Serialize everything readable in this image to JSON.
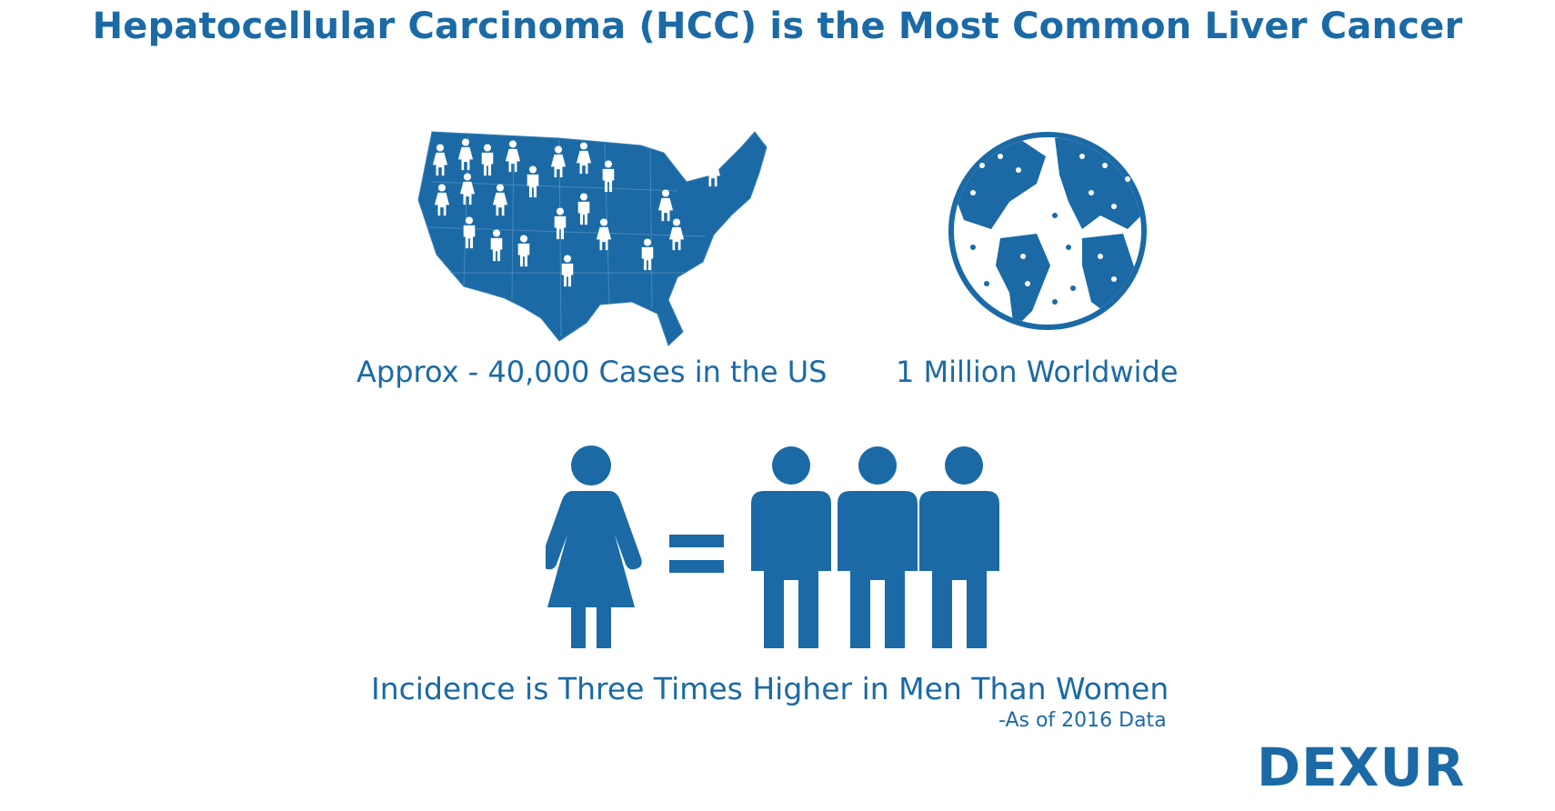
{
  "title": "Hepatocellular Carcinoma (HCC) is the Most Common Liver Cancer",
  "us_caption": "Approx - 40,000 Cases in the US",
  "world_caption": "1 Million Worldwide",
  "incidence_caption": "Incidence is Three Times Higher in Men Than Women",
  "source_note": "-As of 2016 Data",
  "brand": "DEXUR",
  "colors": {
    "primary": "#1b6aa5",
    "background": "#ffffff"
  },
  "icons": [
    "us-map-icon",
    "globe-icon",
    "woman-icon",
    "equals-icon",
    "man-icon"
  ]
}
